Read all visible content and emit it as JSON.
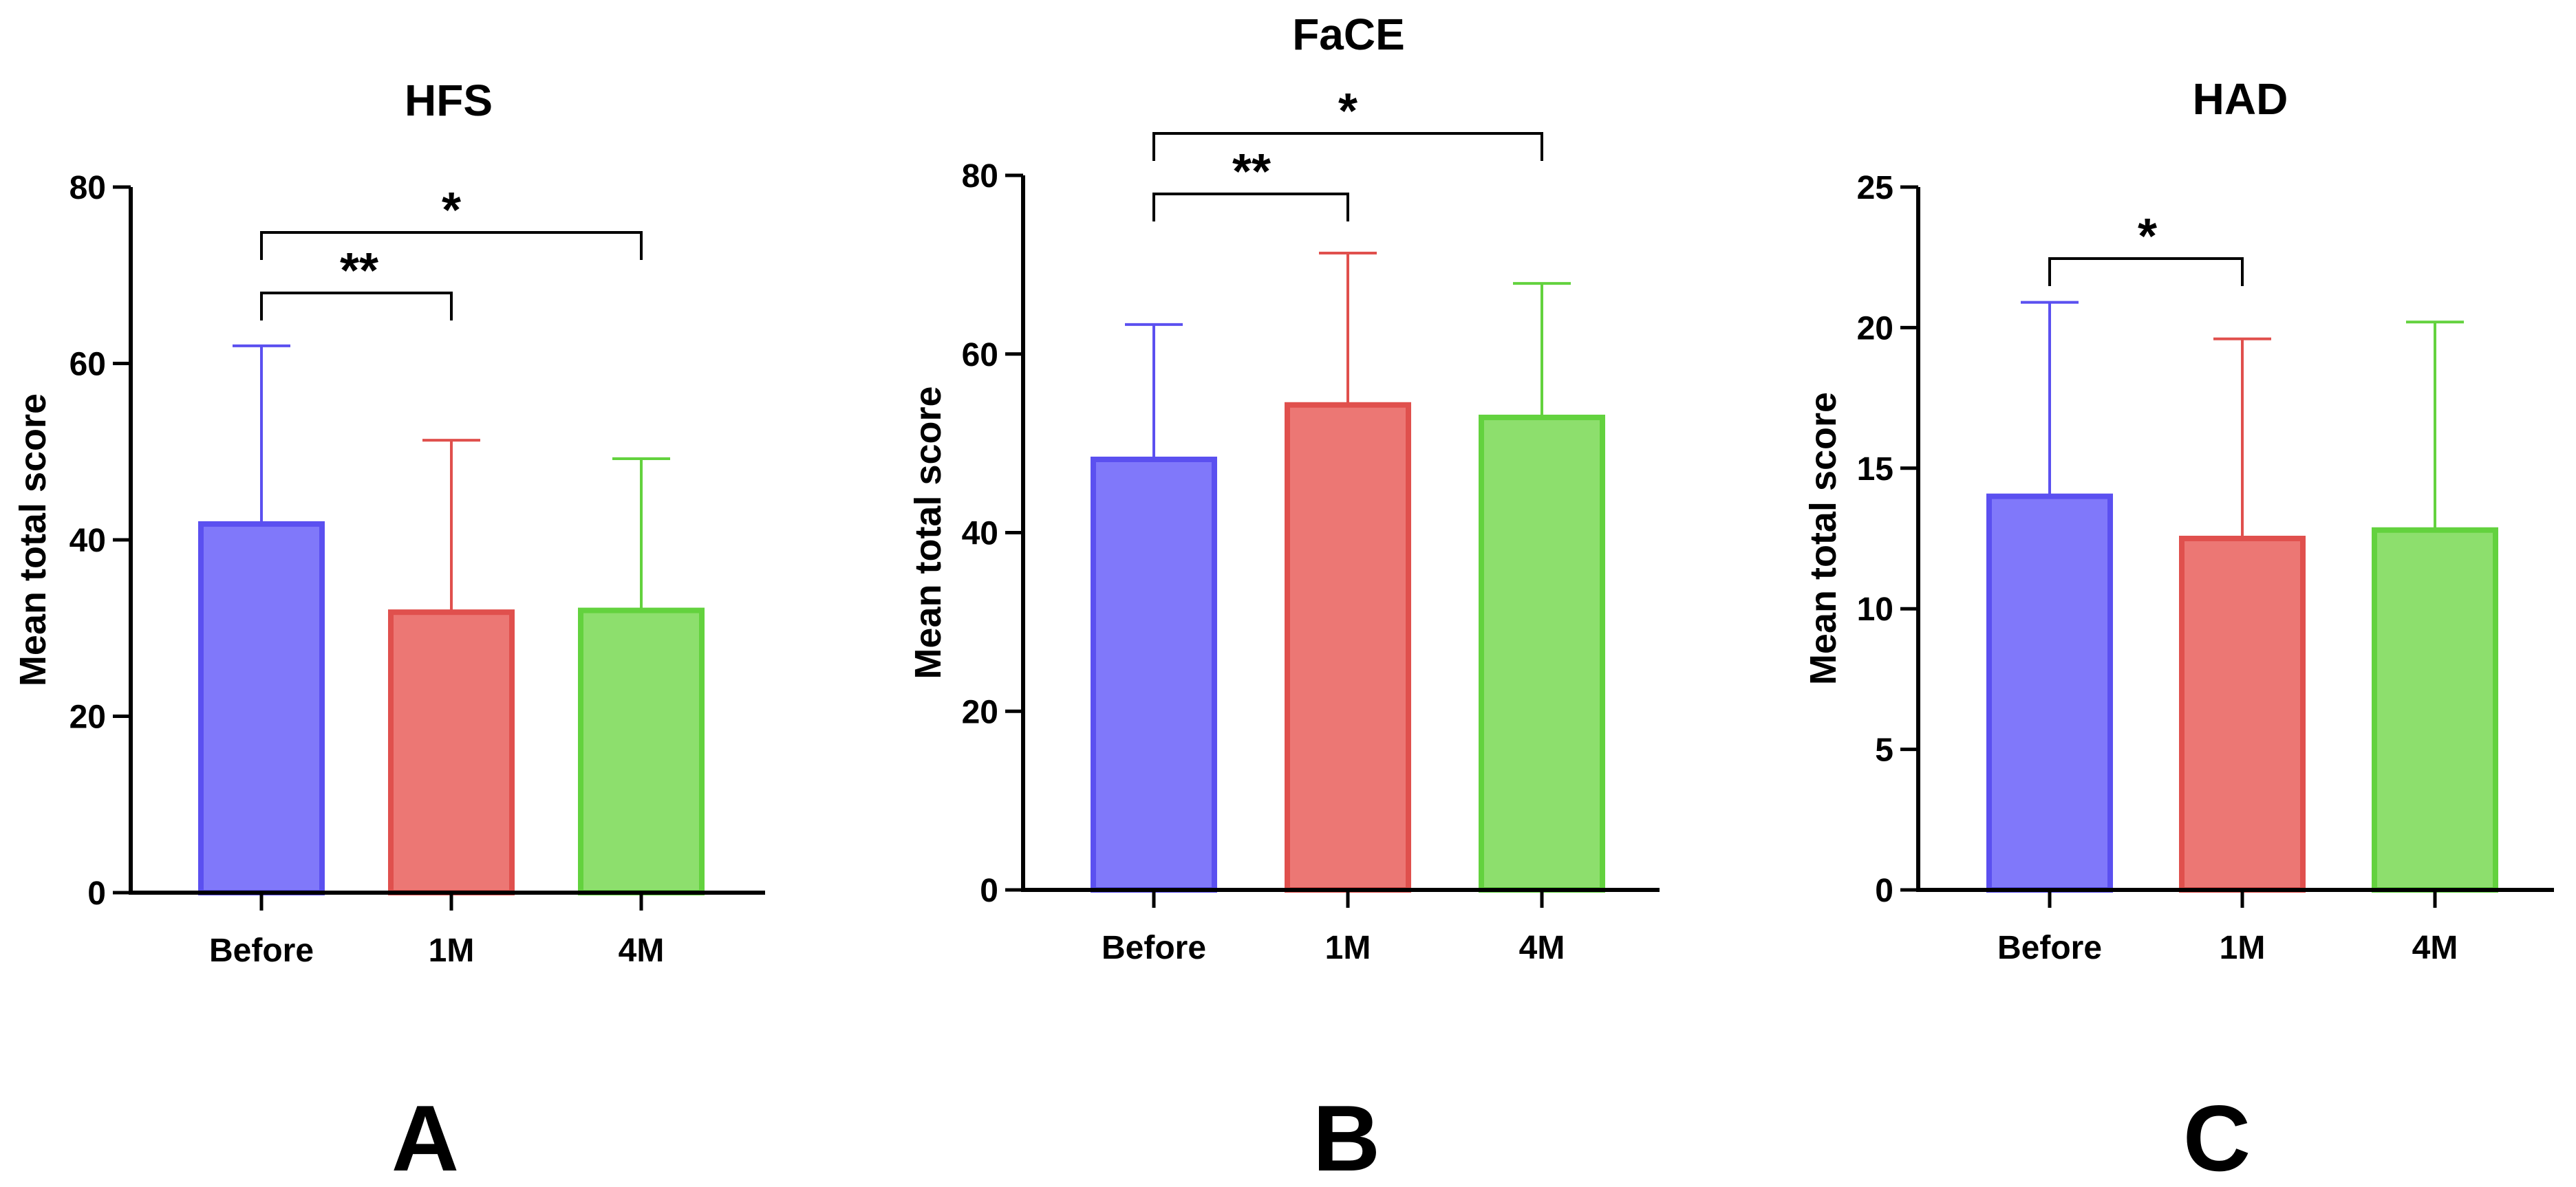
{
  "chart_data": [
    {
      "type": "bar",
      "panel": "A",
      "title": "HFS",
      "ylabel": "Mean total score",
      "xlabel": "",
      "categories": [
        "Before",
        "1M",
        "4M"
      ],
      "values": [
        41.8,
        31.8,
        32.0
      ],
      "error_upper": [
        62.0,
        51.3,
        49.2
      ],
      "ylim": [
        0,
        80
      ],
      "yticks": [
        0,
        20,
        40,
        60,
        80
      ],
      "significance": [
        {
          "from": 0,
          "to": 1,
          "label": "**"
        },
        {
          "from": 0,
          "to": 2,
          "label": "*"
        }
      ],
      "grid": false
    },
    {
      "type": "bar",
      "panel": "B",
      "title": "FaCE",
      "ylabel": "Mean total score",
      "xlabel": "",
      "categories": [
        "Before",
        "1M",
        "4M"
      ],
      "values": [
        48.2,
        54.3,
        52.9
      ],
      "error_upper": [
        63.3,
        71.3,
        67.9
      ],
      "ylim": [
        0,
        80
      ],
      "yticks": [
        0,
        20,
        40,
        60,
        80
      ],
      "significance": [
        {
          "from": 0,
          "to": 1,
          "label": "**"
        },
        {
          "from": 0,
          "to": 2,
          "label": "*"
        }
      ],
      "grid": false
    },
    {
      "type": "bar",
      "panel": "C",
      "title": "HAD",
      "ylabel": "Mean total score",
      "xlabel": "",
      "categories": [
        "Before",
        "1M",
        "4M"
      ],
      "values": [
        14.0,
        12.5,
        12.8
      ],
      "error_upper": [
        20.9,
        19.6,
        20.2
      ],
      "ylim": [
        0,
        25
      ],
      "yticks": [
        0,
        5,
        10,
        15,
        20,
        25
      ],
      "significance": [
        {
          "from": 0,
          "to": 1,
          "label": "*"
        }
      ],
      "grid": false
    }
  ],
  "colors": {
    "categories": [
      {
        "fill": "#8078fa",
        "stroke": "#5b50f0"
      },
      {
        "fill": "#ec7774",
        "stroke": "#e0504d"
      },
      {
        "fill": "#8ddf6d",
        "stroke": "#63d23e"
      }
    ],
    "axis": "#000000"
  }
}
